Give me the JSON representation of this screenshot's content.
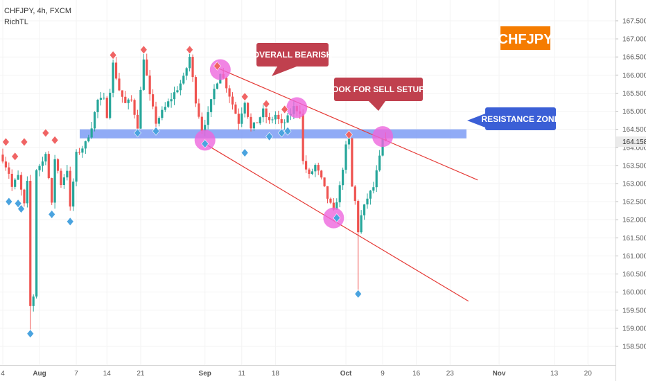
{
  "header": {
    "symbol_line": "CHFJPY, 4h, FXCM",
    "indicator": "RichTL"
  },
  "badge": {
    "text": "CHFJPY",
    "bg": "#f57c00",
    "fg": "#ffffff"
  },
  "annotations": {
    "overall_bearish": "OVERALL BEARISH",
    "look_for_sell": "LOOK FOR SELL SETUPS",
    "resistance_zone": "RESISTANCE ZONE"
  },
  "colors": {
    "up": "#26a69a",
    "down": "#ef5350",
    "channel": "#e53935",
    "zone": "#7c9cf4",
    "highlight": "#ee66dd",
    "label_red": "#c0404e",
    "label_blue": "#3b5fd6",
    "marker_red": "#f06464",
    "marker_blue": "#4aa3df"
  },
  "chart_data": {
    "type": "candlestick",
    "symbol": "CHFJPY",
    "timeframe": "4h",
    "source": "FXCM",
    "last_price": 164.158,
    "y_axis": {
      "ylim": [
        158.2,
        167.4
      ],
      "ticks": [
        "158.500",
        "159.000",
        "159.500",
        "160.000",
        "160.500",
        "161.000",
        "161.500",
        "162.000",
        "162.500",
        "163.000",
        "163.500",
        "164.000",
        "164.500",
        "165.000",
        "165.500",
        "166.000",
        "166.500",
        "167.000",
        "167.500"
      ]
    },
    "x_axis": {
      "tick_labels": [
        "4",
        "Aug",
        "7",
        "14",
        "21",
        "Sep",
        "11",
        "18",
        "Oct",
        "9",
        "16",
        "23",
        "Nov",
        "13",
        "20"
      ],
      "tick_bars": [
        0,
        12,
        24,
        34,
        45,
        66,
        78,
        89,
        112,
        124,
        135,
        146,
        162,
        180,
        191
      ]
    },
    "resistance_zone": [
      164.25,
      164.5
    ],
    "channel_upper": {
      "from": {
        "bar": 70,
        "price": 166.2
      },
      "to": {
        "bar": 155,
        "price": 163.1
      }
    },
    "channel_lower": {
      "from": {
        "bar": 65,
        "price": 164.15
      },
      "to": {
        "bar": 152,
        "price": 159.75
      }
    },
    "swing_high_markers": [
      {
        "bar": 1,
        "price": 164.15
      },
      {
        "bar": 4,
        "price": 163.75
      },
      {
        "bar": 7,
        "price": 164.15
      },
      {
        "bar": 14,
        "price": 164.4
      },
      {
        "bar": 17,
        "price": 164.2
      },
      {
        "bar": 36,
        "price": 166.55
      },
      {
        "bar": 46,
        "price": 166.7
      },
      {
        "bar": 61,
        "price": 166.7
      },
      {
        "bar": 70,
        "price": 166.25
      },
      {
        "bar": 79,
        "price": 165.4
      },
      {
        "bar": 86,
        "price": 165.2
      },
      {
        "bar": 92,
        "price": 165.05
      },
      {
        "bar": 113,
        "price": 164.35
      }
    ],
    "swing_low_markers": [
      {
        "bar": 2,
        "price": 162.5
      },
      {
        "bar": 5,
        "price": 162.45
      },
      {
        "bar": 6,
        "price": 162.3
      },
      {
        "bar": 9,
        "price": 158.85
      },
      {
        "bar": 16,
        "price": 162.15
      },
      {
        "bar": 22,
        "price": 161.95
      },
      {
        "bar": 44,
        "price": 164.4
      },
      {
        "bar": 50,
        "price": 164.45
      },
      {
        "bar": 66,
        "price": 164.1
      },
      {
        "bar": 79,
        "price": 163.85
      },
      {
        "bar": 87,
        "price": 164.3
      },
      {
        "bar": 91,
        "price": 164.4
      },
      {
        "bar": 93,
        "price": 164.45
      },
      {
        "bar": 109,
        "price": 162.05
      },
      {
        "bar": 116,
        "price": 159.95
      }
    ],
    "highlight_circles": [
      {
        "bar": 71,
        "price": 166.15
      },
      {
        "bar": 96,
        "price": 165.1
      },
      {
        "bar": 66,
        "price": 164.2
      },
      {
        "bar": 108,
        "price": 162.05
      },
      {
        "bar": 124,
        "price": 164.3
      }
    ],
    "path_points": [
      [
        0,
        163.7
      ],
      [
        2,
        163.3
      ],
      [
        3,
        162.9
      ],
      [
        5,
        163.2
      ],
      [
        7,
        162.4
      ],
      [
        8,
        163.0
      ],
      [
        9,
        159.6
      ],
      [
        10,
        159.9
      ],
      [
        11,
        163.4
      ],
      [
        13,
        163.6
      ],
      [
        14,
        163.9
      ],
      [
        16,
        162.4
      ],
      [
        17,
        163.7
      ],
      [
        19,
        163.0
      ],
      [
        21,
        163.4
      ],
      [
        22,
        162.3
      ],
      [
        24,
        163.8
      ],
      [
        27,
        164.1
      ],
      [
        29,
        164.6
      ],
      [
        31,
        165.3
      ],
      [
        33,
        165.3
      ],
      [
        34,
        164.9
      ],
      [
        36,
        166.3
      ],
      [
        38,
        165.6
      ],
      [
        40,
        165.2
      ],
      [
        42,
        165.3
      ],
      [
        44,
        164.6
      ],
      [
        46,
        166.5
      ],
      [
        48,
        165.4
      ],
      [
        50,
        164.7
      ],
      [
        53,
        165.1
      ],
      [
        56,
        165.5
      ],
      [
        59,
        165.9
      ],
      [
        61,
        166.5
      ],
      [
        63,
        165.3
      ],
      [
        65,
        164.5
      ],
      [
        67,
        164.9
      ],
      [
        69,
        165.6
      ],
      [
        71,
        166.1
      ],
      [
        73,
        165.7
      ],
      [
        75,
        165.2
      ],
      [
        77,
        164.7
      ],
      [
        79,
        165.3
      ],
      [
        81,
        164.5
      ],
      [
        83,
        164.7
      ],
      [
        85,
        165.0
      ],
      [
        87,
        164.7
      ],
      [
        89,
        164.9
      ],
      [
        91,
        164.6
      ],
      [
        93,
        164.8
      ],
      [
        95,
        165.1
      ],
      [
        97,
        165.0
      ],
      [
        98,
        163.6
      ],
      [
        100,
        163.2
      ],
      [
        102,
        163.5
      ],
      [
        104,
        163.1
      ],
      [
        106,
        162.6
      ],
      [
        108,
        162.2
      ],
      [
        110,
        162.9
      ],
      [
        112,
        164.0
      ],
      [
        113,
        164.2
      ],
      [
        114,
        162.9
      ],
      [
        115,
        162.5
      ],
      [
        116,
        161.7
      ],
      [
        117,
        162.1
      ],
      [
        119,
        162.6
      ],
      [
        121,
        162.9
      ],
      [
        123,
        163.7
      ],
      [
        124,
        164.2
      ],
      [
        125,
        164.1
      ]
    ]
  }
}
